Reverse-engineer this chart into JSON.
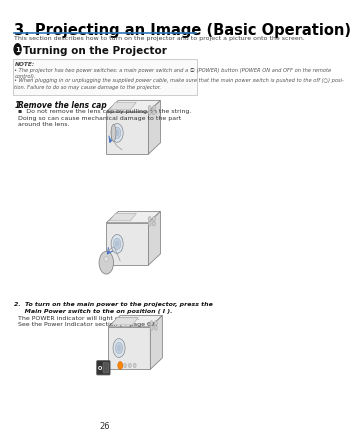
{
  "title": "3. Projecting an Image (Basic Operation)",
  "subtitle": "This section describes how to turn on the projector and to project a picture onto the screen.",
  "section_title": "Turning on the Projector",
  "note_bullet1": "The projector has two power switches: a main power switch and a Ⓢ (POWER) button (POWER ON and OFF on the remote\ncontrol).",
  "note_bullet2": "When plugging in or unplugging the supplied power cable, make sure that the main power switch is pushed to the off (○) posi-\ntion. Failure to do so may cause damage to the projector.",
  "step1_label": "1.",
  "step1_title": "Remove the lens cap",
  "step1_bullet": "Do not remove the lens cap by pulling on the string.\nDoing so can cause mechanical damage to the part\naround the lens.",
  "step2_text": "2.  To turn on the main power to the projector, press the\n     Main Power switch to the on position ( I ).",
  "step2_line1": "The POWER indicator will light orange.",
  "step2_line2": "See the Power Indicator section (→ page 62)",
  "page_number": "26",
  "bg_color": "#ffffff",
  "title_color": "#000000",
  "title_line_color": "#2e75b6",
  "arrow_color": "#4472c4",
  "note_border": "#999999",
  "note_text": "#444444",
  "body_color": "#f2f2f2",
  "body_edge": "#888888",
  "body_dark": "#d0d0d0"
}
